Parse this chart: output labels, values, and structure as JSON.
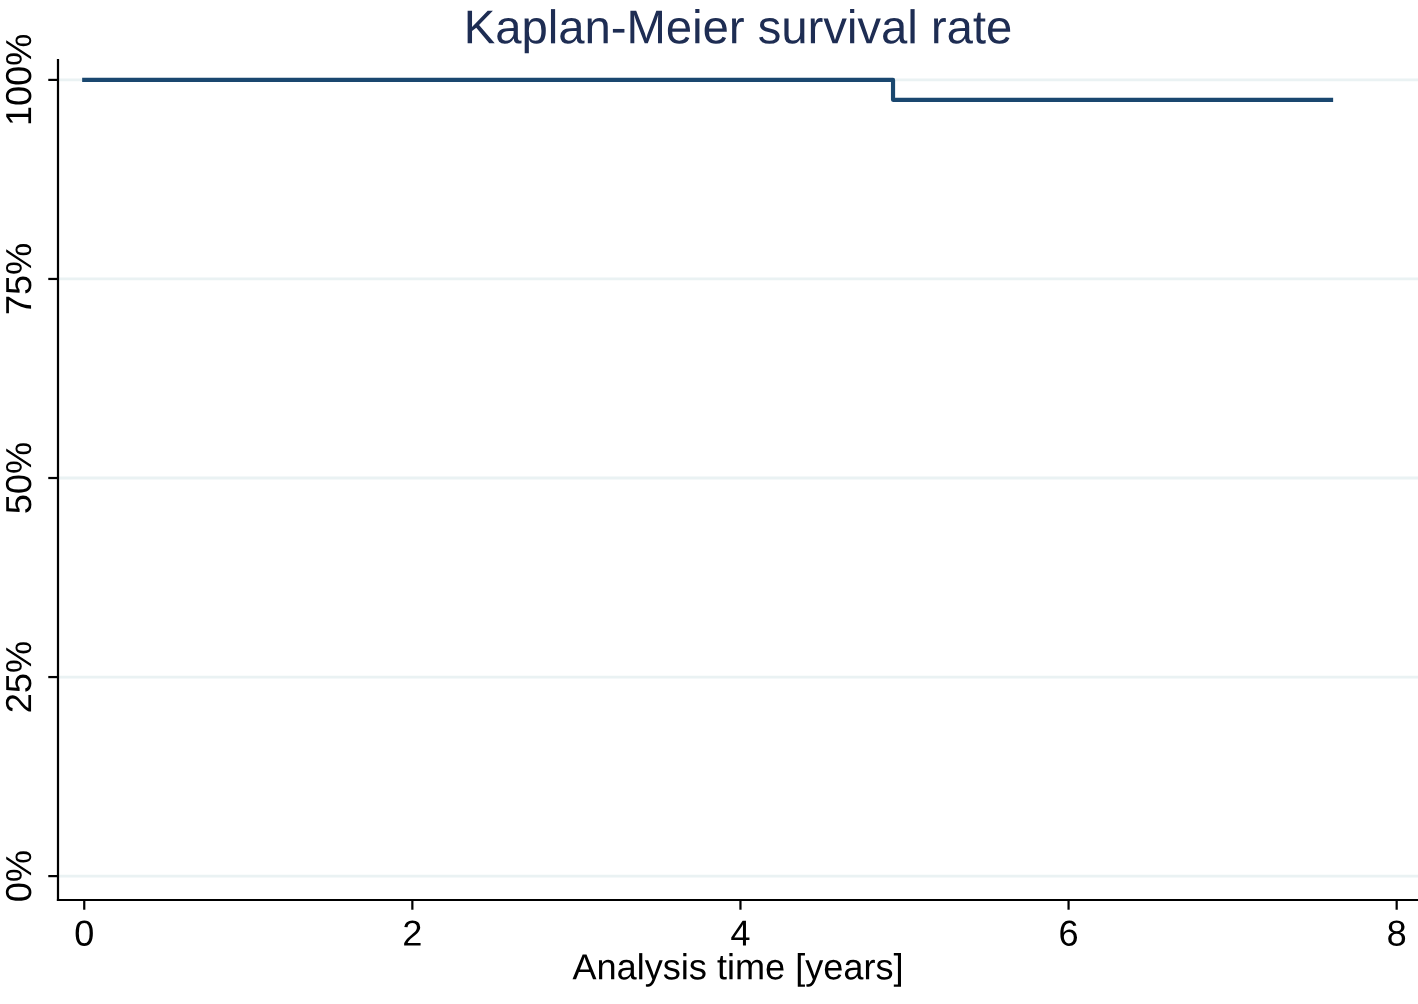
{
  "chart_data": {
    "type": "step",
    "title": "Kaplan-Meier survival rate",
    "xlabel": "Analysis time [years]",
    "x": [
      0,
      4.93,
      7.6
    ],
    "series": [
      {
        "color": "#1a476f",
        "values": [
          100,
          97.5,
          97.5
        ]
      }
    ],
    "xlim": [
      -0.16,
      8.13
    ],
    "xticks": [
      0,
      2,
      4,
      6,
      8
    ],
    "ylim": [
      -3,
      102.5
    ],
    "yticks": [
      {
        "value": 0,
        "label": "0%"
      },
      {
        "value": 25,
        "label": "25%"
      },
      {
        "value": 50,
        "label": "50%"
      },
      {
        "value": 75,
        "label": "75%"
      },
      {
        "value": 100,
        "label": "100%"
      }
    ],
    "grid": "y",
    "marker": "none",
    "line_style": "solid"
  }
}
